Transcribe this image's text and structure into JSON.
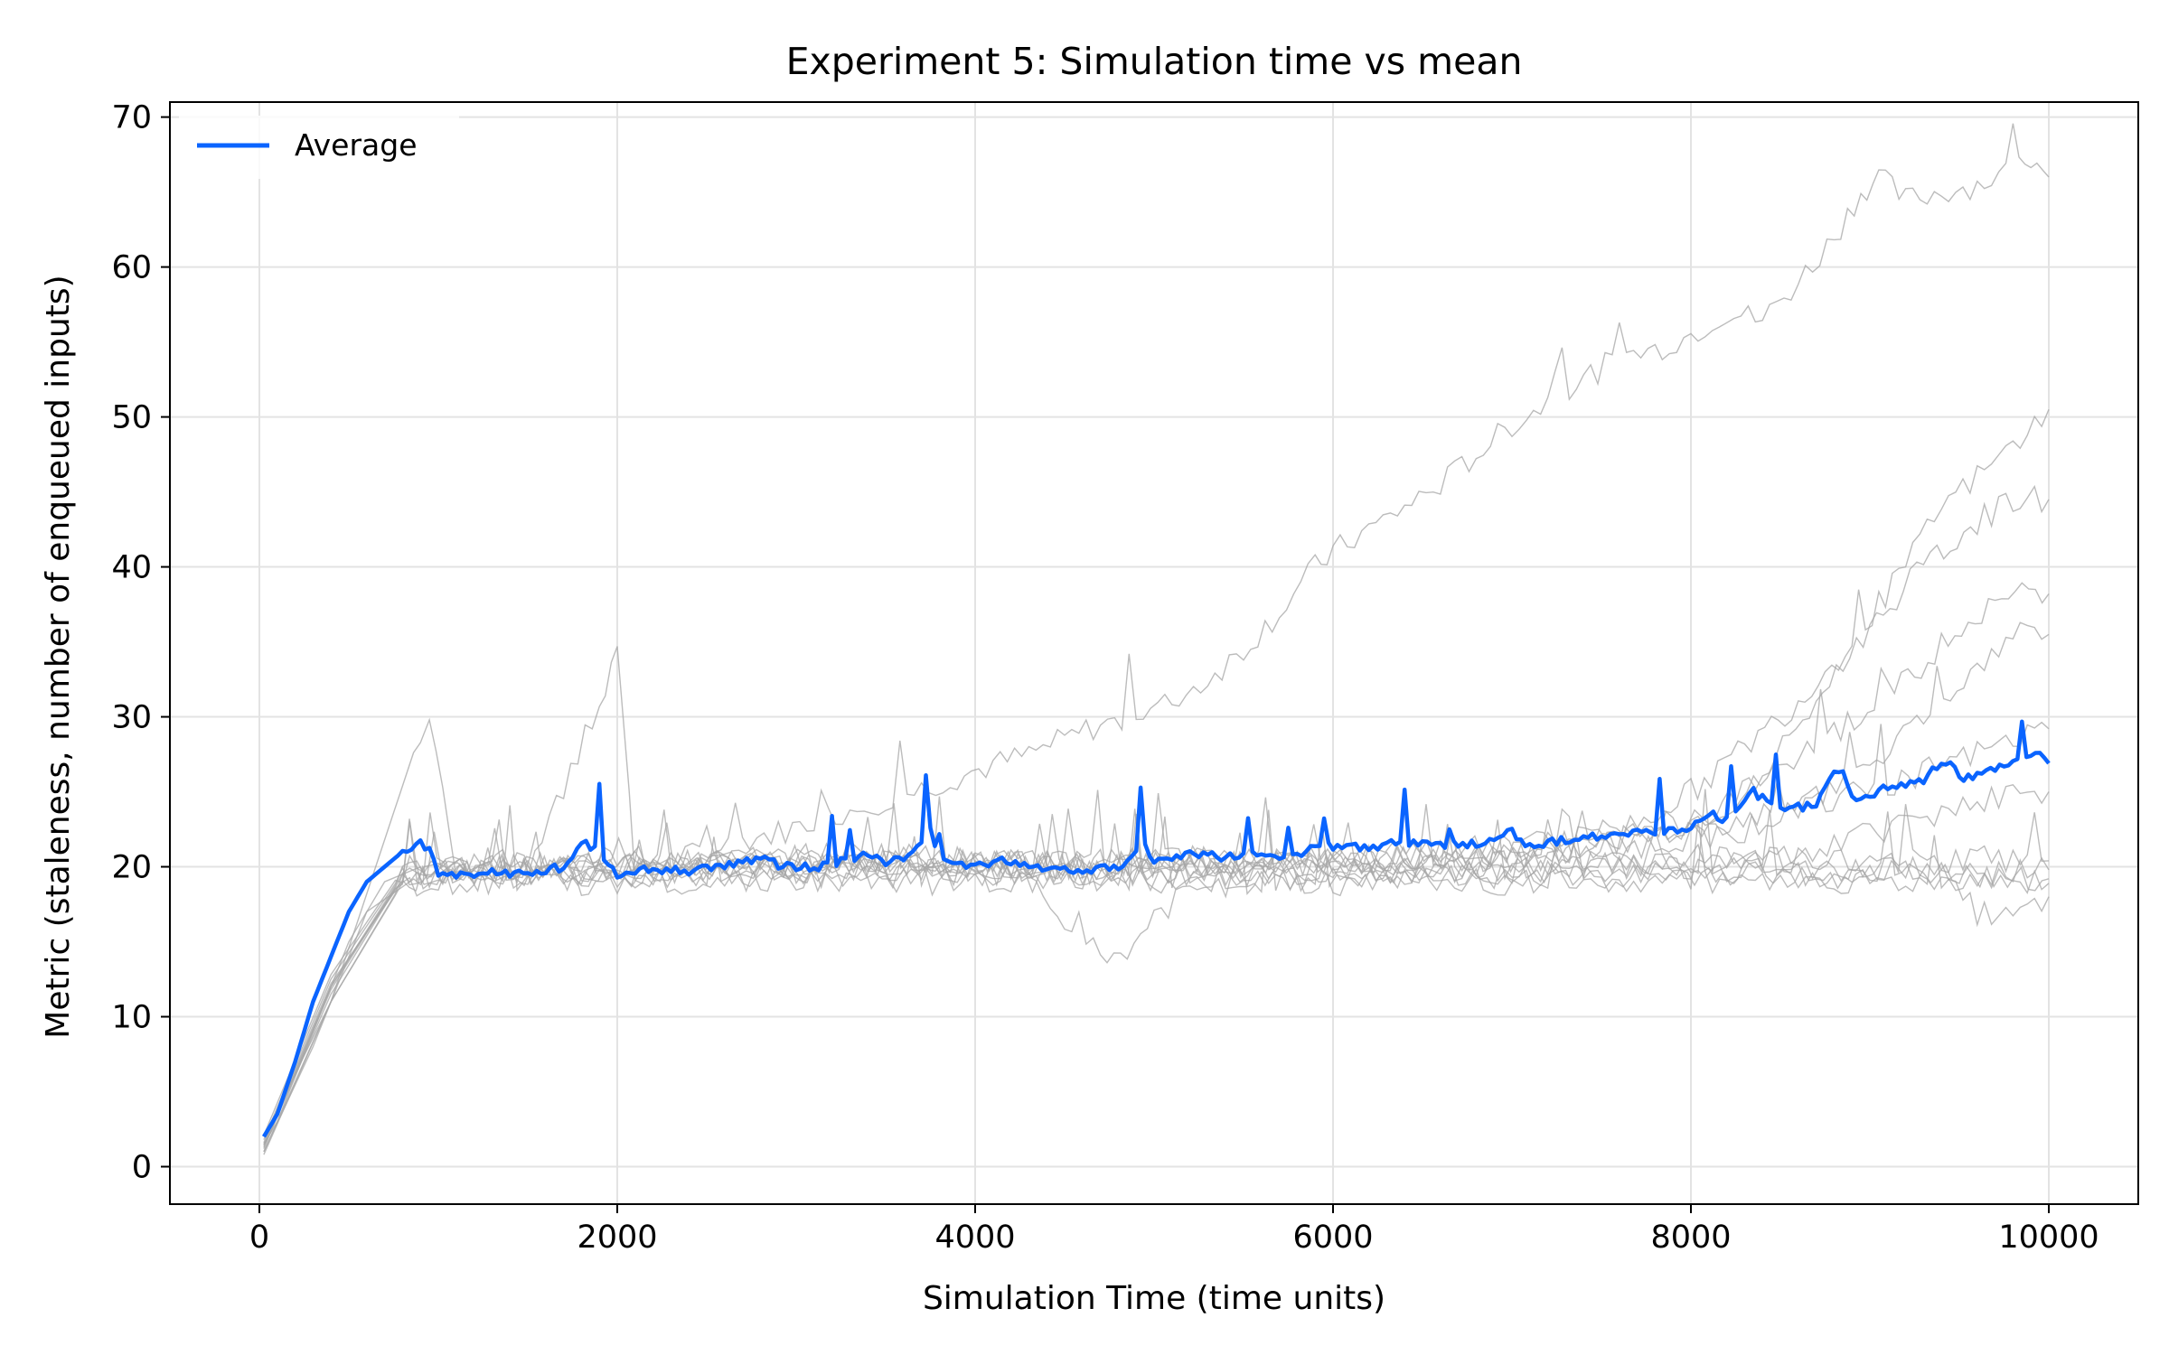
{
  "chart_data": {
    "type": "line",
    "title": "Experiment 5: Simulation time vs mean",
    "xlabel": "Simulation Time (time units)",
    "ylabel": "Metric (staleness, number of enqueued inputs)",
    "xlim": [
      -500,
      10500
    ],
    "ylim": [
      -2.5,
      71
    ],
    "xticks": [
      0,
      2000,
      4000,
      6000,
      8000,
      10000
    ],
    "xtick_labels": [
      "0",
      "2000",
      "4000",
      "6000",
      "8000",
      "10000"
    ],
    "yticks": [
      0,
      10,
      20,
      30,
      40,
      50,
      60,
      70
    ],
    "ytick_labels": [
      "0",
      "10",
      "20",
      "30",
      "40",
      "50",
      "60",
      "70"
    ],
    "grid": true,
    "legend": {
      "placement": "top-left",
      "entries": [
        "Average"
      ]
    },
    "colors": {
      "average": "#0a64ff",
      "runs": "#a6a6a6",
      "grid": "#e3e3e3"
    },
    "x_start": 25,
    "x_end": 10000,
    "series": [
      {
        "name": "Average",
        "x": [
          25,
          100,
          200,
          300,
          400,
          500,
          600,
          700,
          800,
          900,
          950,
          1000,
          1100,
          1200,
          1300,
          1400,
          1500,
          1600,
          1700,
          1800,
          1900,
          2000,
          2100,
          2200,
          2300,
          2400,
          2500,
          2600,
          2700,
          2800,
          2900,
          3000,
          3100,
          3200,
          3300,
          3400,
          3500,
          3600,
          3700,
          3750,
          3800,
          3900,
          4000,
          4200,
          4400,
          4600,
          4800,
          4950,
          5000,
          5100,
          5200,
          5400,
          5600,
          5800,
          5900,
          6000,
          6200,
          6400,
          6600,
          6800,
          7000,
          7100,
          7200,
          7400,
          7600,
          7800,
          8000,
          8100,
          8200,
          8350,
          8500,
          8700,
          8800,
          8850,
          8900,
          9000,
          9100,
          9200,
          9300,
          9400,
          9450,
          9500,
          9600,
          9700,
          9800,
          9900,
          9950,
          10000
        ],
        "y": [
          2,
          3.5,
          7,
          11,
          14,
          17,
          19,
          20,
          21,
          21.5,
          21,
          19.5,
          19.5,
          19.4,
          19.6,
          19.5,
          19.6,
          19.8,
          20,
          21.5,
          21,
          19.5,
          19.8,
          19.8,
          19.8,
          19.7,
          19.9,
          20.1,
          20.2,
          20.8,
          20.1,
          20,
          19.9,
          20.2,
          20.5,
          21,
          20.3,
          20.5,
          21.5,
          22.5,
          20.3,
          20.1,
          20.2,
          20.4,
          19.9,
          19.8,
          20,
          21.5,
          20.4,
          20.6,
          21,
          20.6,
          20.9,
          20.7,
          21.3,
          21.4,
          21.2,
          21.7,
          21.4,
          21.6,
          22.3,
          21.3,
          21.6,
          21.9,
          22.3,
          22.2,
          22.6,
          23.6,
          23.1,
          25,
          23.7,
          24.2,
          26.4,
          26.4,
          24.5,
          24.8,
          25.4,
          25.4,
          25.8,
          27,
          27,
          25.8,
          26,
          26.5,
          27,
          27.2,
          27.5,
          26.9
        ]
      }
    ],
    "runs": [
      {
        "x": [
          25,
          100,
          300,
          500,
          700,
          900,
          1100,
          1300,
          1500,
          1700,
          1900,
          2100,
          2300,
          2500,
          2700,
          2900,
          3100,
          3300,
          3500,
          3700,
          3900,
          4100,
          4300,
          4500,
          4700,
          4900,
          5100,
          5300,
          5500,
          5700,
          5900,
          6000,
          6200,
          6400,
          6600,
          6800,
          7000,
          7200,
          7400,
          7600,
          7800,
          8000,
          8200,
          8400,
          8600,
          8800,
          8950,
          9050,
          9200,
          9400,
          9600,
          9800,
          9900,
          10000
        ],
        "y": [
          1.5,
          3,
          9,
          15,
          19,
          20,
          19.5,
          19.8,
          20.1,
          20,
          19.7,
          20.2,
          20.5,
          21,
          21.8,
          22.3,
          23,
          23.8,
          24.5,
          25.2,
          26,
          26.8,
          27.5,
          28.5,
          29.5,
          29.8,
          31,
          32.5,
          34.5,
          37,
          40,
          41,
          42.5,
          44,
          45.5,
          47.5,
          49.5,
          51,
          52.5,
          54,
          54.5,
          55.5,
          57,
          56.5,
          59,
          62,
          65,
          66,
          64.5,
          65,
          65.5,
          66.5,
          67,
          66
        ]
      },
      {
        "x": [
          25,
          300,
          600,
          900,
          1400,
          1900,
          2400,
          2900,
          3400,
          3900,
          4300,
          4500,
          4700,
          4850,
          5000,
          5200,
          5600,
          6000,
          6400,
          6800,
          7200,
          7600,
          8000,
          8400,
          8800,
          9200,
          9400,
          9600,
          9800,
          10000
        ],
        "y": [
          1,
          8,
          17,
          19.5,
          19.7,
          20,
          19.6,
          20.5,
          21,
          20.5,
          19.5,
          15,
          14.5,
          13.5,
          16.5,
          18.5,
          19.2,
          19.5,
          19.8,
          20,
          19.7,
          20.2,
          20.5,
          20,
          19.5,
          20.2,
          19,
          17,
          16.5,
          18
        ]
      },
      {
        "x": [
          25,
          400,
          800,
          1200,
          1700,
          2200,
          2700,
          3200,
          3700,
          4200,
          4700,
          5200,
          5700,
          6200,
          6700,
          7200,
          7700,
          8000,
          8300,
          8600,
          8900,
          9200,
          9400,
          9600,
          9800,
          10000
        ],
        "y": [
          1.5,
          12,
          19.5,
          20,
          19.8,
          20.2,
          20.5,
          19.8,
          20.4,
          20,
          20.3,
          20.1,
          20.5,
          20.2,
          20.8,
          21.5,
          23,
          25,
          28,
          31,
          35,
          40,
          44,
          46,
          48,
          50.5
        ]
      },
      {
        "x": [
          25,
          400,
          800,
          1200,
          1700,
          2200,
          2700,
          3200,
          3700,
          4200,
          4700,
          5200,
          5700,
          6200,
          6700,
          7200,
          7700,
          8100,
          8400,
          8700,
          9000,
          9300,
          9600,
          9800,
          10000
        ],
        "y": [
          2,
          11,
          19,
          19.6,
          20,
          19.7,
          20.1,
          20.4,
          19.9,
          20.3,
          20,
          20.5,
          20.2,
          20.6,
          20.4,
          21,
          22,
          23.5,
          26,
          31,
          36,
          40,
          43,
          44.5,
          44.5
        ]
      },
      {
        "x": [
          25,
          400,
          800,
          1300,
          1800,
          2300,
          2800,
          3300,
          3800,
          4300,
          4800,
          5300,
          5800,
          6300,
          6800,
          7300,
          7800,
          8200,
          8500,
          8800,
          9100,
          9400,
          9700,
          9850,
          10000
        ],
        "y": [
          1.2,
          12,
          19.3,
          19.8,
          20.2,
          19.9,
          20.3,
          20.1,
          20.6,
          20,
          20.4,
          20.2,
          20.5,
          20.3,
          20.6,
          21.2,
          22,
          24,
          26.5,
          29,
          31.5,
          34,
          37.5,
          38.5,
          38.2
        ]
      },
      {
        "x": [
          25,
          400,
          800,
          1300,
          1800,
          2300,
          2800,
          3300,
          3800,
          4300,
          4800,
          5300,
          5800,
          6300,
          6800,
          7300,
          7800,
          8300,
          8700,
          9000,
          9300,
          9600,
          9800,
          10000
        ],
        "y": [
          1.8,
          12.5,
          19.6,
          20.1,
          19.8,
          20.2,
          19.9,
          20.3,
          20,
          20.4,
          19.8,
          20.2,
          20.5,
          20.1,
          20.4,
          20.8,
          21.5,
          22.5,
          24.5,
          27,
          30,
          33,
          35.5,
          35.5
        ]
      },
      {
        "x": [
          25,
          400,
          900,
          950,
          1100,
          1500,
          1900,
          2000,
          2100,
          2600,
          3100,
          3600,
          4100,
          4600,
          5100,
          5600,
          6100,
          6600,
          7100,
          7600,
          8100,
          8600,
          9100,
          9600,
          10000
        ],
        "y": [
          1,
          11,
          29,
          30,
          19.5,
          19.8,
          31,
          34.5,
          19.6,
          20.2,
          20,
          20.5,
          20.3,
          19.9,
          20.6,
          20.1,
          20.4,
          21,
          21.5,
          22,
          22.6,
          24,
          25.5,
          27.5,
          29.2
        ]
      },
      {
        "x": [
          25,
          400,
          800,
          1200,
          1600,
          2000,
          2400,
          2800,
          3200,
          3600,
          4000,
          4400,
          4800,
          5200,
          5600,
          6000,
          6400,
          6800,
          7200,
          7600,
          8000,
          8400,
          8800,
          9200,
          9600,
          10000
        ],
        "y": [
          1.3,
          11.5,
          19.3,
          19.5,
          19.7,
          19.4,
          19.6,
          19.8,
          19.5,
          19.7,
          19.6,
          19.9,
          19.5,
          19.8,
          19.6,
          19.9,
          19.7,
          19.8,
          19.6,
          19.9,
          20,
          20.5,
          21.5,
          23,
          24.5,
          25
        ]
      },
      {
        "x": [
          25,
          400,
          800,
          1100,
          1500,
          1900,
          2300,
          2700,
          3100,
          3500,
          3900,
          4300,
          4700,
          5100,
          5500,
          5900,
          6300,
          6700,
          7100,
          7500,
          7900,
          8300,
          8700,
          9100,
          9500,
          10000
        ],
        "y": [
          1.6,
          12.2,
          19.1,
          19.2,
          19.4,
          19.3,
          19.5,
          19.2,
          19.4,
          19.3,
          19.5,
          19.2,
          19.4,
          19.3,
          19.5,
          19.2,
          19.4,
          19.3,
          19.5,
          19.2,
          19.4,
          19.6,
          19.3,
          19.5,
          19.4,
          19.2
        ]
      },
      {
        "x": [
          25,
          400,
          800,
          1200,
          1600,
          2000,
          2400,
          2800,
          3200,
          3600,
          4000,
          4400,
          4800,
          5200,
          5600,
          6000,
          6400,
          6800,
          7200,
          7600,
          8000,
          8400,
          8800,
          9200,
          9600,
          10000
        ],
        "y": [
          2.1,
          12.8,
          19.8,
          20.4,
          20.2,
          20.5,
          20.1,
          20.6,
          20.3,
          20.7,
          20.2,
          20.5,
          20.3,
          20.6,
          20.2,
          20.4,
          20.6,
          20.3,
          20.5,
          20.2,
          20.6,
          20.4,
          20.7,
          20.3,
          20.5,
          20.4
        ]
      },
      {
        "x": [
          25,
          400,
          800,
          1200,
          1600,
          2000,
          2400,
          2800,
          3200,
          3600,
          4000,
          4400,
          4800,
          5200,
          5600,
          6000,
          6400,
          6800,
          7200,
          7600,
          8000,
          8400,
          8800,
          9200,
          9600,
          10000
        ],
        "y": [
          0.8,
          11,
          18.9,
          19,
          18.8,
          19.1,
          18.9,
          19.2,
          18.8,
          19.1,
          18.9,
          19.2,
          19,
          18.8,
          19.1,
          18.9,
          19.2,
          19,
          18.8,
          19.1,
          18.9,
          19.2,
          19,
          18.8,
          19.1,
          18.9
        ]
      },
      {
        "x": [
          25,
          400,
          800,
          1200,
          1600,
          2000,
          2400,
          2800,
          3200,
          3600,
          4000,
          4400,
          4800,
          5200,
          5600,
          6000,
          6400,
          6800,
          7200,
          7600,
          8000,
          8400,
          8800,
          9200,
          9600,
          10000
        ],
        "y": [
          1.4,
          11.8,
          19.4,
          19.9,
          19.6,
          19.8,
          19.5,
          19.9,
          19.6,
          19.8,
          19.5,
          19.9,
          19.6,
          19.8,
          19.5,
          19.9,
          19.6,
          19.8,
          19.5,
          19.9,
          19.6,
          19.8,
          19.5,
          19.9,
          19.6,
          19.8
        ]
      }
    ]
  }
}
